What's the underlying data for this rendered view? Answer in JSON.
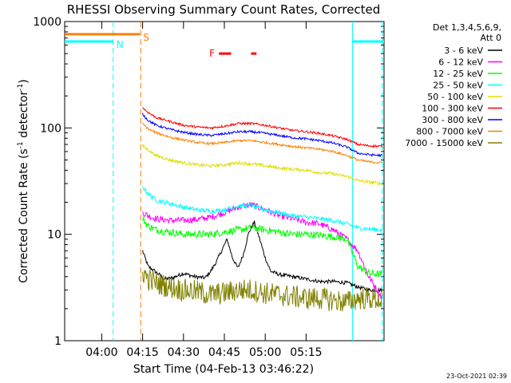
{
  "chart_data": {
    "type": "line",
    "title": "RHESSI Observing Summary Count Rates, Corrected",
    "xlabel": "Start Time (04-Feb-13 03:46:22)",
    "ylabel_main": "Corrected Count Rate (s",
    "ylabel_sup1": "-1",
    "ylabel_mid": " detector",
    "ylabel_sup2": "-1",
    "ylabel_end": ")",
    "y_scale": "log",
    "ylim": [
      1,
      1000
    ],
    "xlim": [
      226.4,
      343.6
    ],
    "x_ticks": [
      {
        "value": 240,
        "label": "04:00"
      },
      {
        "value": 255,
        "label": "04:15"
      },
      {
        "value": 270,
        "label": "04:30"
      },
      {
        "value": 285,
        "label": "04:45"
      },
      {
        "value": 300,
        "label": "05:00"
      },
      {
        "value": 315,
        "label": "05:15"
      }
    ],
    "y_ticks": [
      {
        "value": 1,
        "label": "1"
      },
      {
        "value": 10,
        "label": "10"
      },
      {
        "value": 100,
        "label": "100"
      },
      {
        "value": 1000,
        "label": "1000"
      }
    ],
    "legend": {
      "header1": "Det 1,3,4,5,6,9,",
      "header2": "Att 0",
      "placement": "right"
    },
    "timestamp": "23-Oct-2021 02:39",
    "flags": [
      {
        "label": "N",
        "color": "#00ffff",
        "x_start": 226.4,
        "x_end": 244.2,
        "level": 650
      },
      {
        "label": "S",
        "color": "#ff7f00",
        "x_start": 226.4,
        "x_end": 254.0,
        "level": 760
      }
    ],
    "flag_right": {
      "color": "#00ffff",
      "x_start": 332.0,
      "x_end": 343.6,
      "level": 650
    },
    "flare": {
      "label": "F",
      "color": "#ff0000",
      "segments": [
        [
          283.0,
          287.5
        ],
        [
          294.8,
          296.8
        ]
      ],
      "level": 500
    },
    "vlines": [
      {
        "x": 244.2,
        "color": "#00ffff",
        "style": "dashed"
      },
      {
        "x": 254.3,
        "color": "#ff7f00",
        "style": "dashed"
      },
      {
        "x": 332.0,
        "color": "#00ffff",
        "style": "solid"
      },
      {
        "x": 343.0,
        "color": "#00ffff",
        "style": "dashed"
      }
    ],
    "series": [
      {
        "name": "3 - 6 keV",
        "color": "#000000",
        "x": [
          255,
          257,
          259,
          261,
          263,
          266,
          270,
          274,
          278,
          280,
          282,
          284,
          286,
          288,
          290,
          292,
          294,
          296,
          298,
          300,
          302,
          305,
          310,
          315,
          320,
          325,
          330,
          334,
          338,
          343
        ],
        "y": [
          7,
          5,
          4.6,
          4.2,
          3.8,
          3.9,
          4.3,
          4.0,
          3.9,
          4.5,
          5.5,
          7.0,
          9.0,
          6.0,
          4.8,
          6.5,
          10.5,
          13.0,
          9.0,
          6.0,
          4.5,
          4.2,
          4.0,
          3.8,
          3.6,
          3.6,
          3.5,
          3.2,
          3.0,
          3.0
        ]
      },
      {
        "name": "6 - 12 keV",
        "color": "#ff00ff",
        "x": [
          255,
          257,
          260,
          265,
          270,
          275,
          280,
          285,
          290,
          295,
          300,
          305,
          310,
          315,
          320,
          325,
          330,
          334,
          338,
          343
        ],
        "y": [
          16,
          15,
          14,
          13.5,
          13.5,
          13.8,
          14.5,
          16,
          18,
          19,
          17,
          15,
          14,
          13,
          12.5,
          11,
          9,
          7,
          4,
          2.5
        ]
      },
      {
        "name": "12 - 25 keV",
        "color": "#00ff00",
        "x": [
          255,
          257,
          260,
          265,
          270,
          275,
          280,
          285,
          290,
          295,
          300,
          305,
          310,
          315,
          320,
          325,
          330,
          334,
          338,
          343
        ],
        "y": [
          14,
          12,
          11,
          10.5,
          10,
          10,
          10,
          10.5,
          11,
          11.5,
          11,
          10.5,
          10,
          10,
          9.8,
          9.5,
          9.0,
          5.0,
          4.3,
          4.2
        ]
      },
      {
        "name": "25 - 50 keV",
        "color": "#00ffff",
        "x": [
          255,
          257,
          260,
          265,
          270,
          275,
          280,
          285,
          290,
          295,
          300,
          305,
          310,
          315,
          320,
          325,
          330,
          334,
          338,
          343
        ],
        "y": [
          28,
          24,
          21,
          19.5,
          18,
          17,
          16.5,
          17,
          18.5,
          18.5,
          17,
          16,
          15,
          14.5,
          14,
          13.5,
          12.5,
          11.5,
          11.2,
          11
        ]
      },
      {
        "name": "50 - 100 keV",
        "color": "#dddd00",
        "x": [
          255,
          257,
          260,
          265,
          270,
          275,
          280,
          285,
          290,
          295,
          300,
          305,
          310,
          315,
          320,
          325,
          330,
          334,
          338,
          343
        ],
        "y": [
          68,
          62,
          55,
          50,
          47,
          45,
          44,
          45,
          47,
          46,
          44,
          42,
          41,
          40,
          38,
          37,
          35,
          32,
          31,
          30
        ]
      },
      {
        "name": "100 - 300 keV",
        "color": "#ff0000",
        "x": [
          255,
          257,
          260,
          265,
          270,
          275,
          280,
          285,
          290,
          295,
          300,
          305,
          310,
          315,
          320,
          325,
          330,
          334,
          338,
          343
        ],
        "y": [
          155,
          140,
          125,
          115,
          106,
          102,
          100,
          104,
          110,
          110,
          106,
          100,
          95,
          92,
          89,
          84,
          78,
          70,
          68,
          67
        ]
      },
      {
        "name": "300 - 800 keV",
        "color": "#0000ff",
        "x": [
          255,
          257,
          260,
          265,
          270,
          275,
          280,
          285,
          290,
          295,
          300,
          305,
          310,
          315,
          320,
          325,
          330,
          334,
          338,
          343
        ],
        "y": [
          135,
          118,
          106,
          97,
          91,
          87,
          85,
          88,
          92,
          92,
          89,
          85,
          81,
          79,
          76,
          72,
          66,
          58,
          56,
          55
        ]
      },
      {
        "name": "800 - 7000 keV",
        "color": "#ff7f00",
        "x": [
          255,
          257,
          260,
          265,
          270,
          275,
          280,
          285,
          290,
          295,
          300,
          305,
          310,
          315,
          320,
          325,
          330,
          334,
          338,
          343
        ],
        "y": [
          110,
          98,
          90,
          82,
          77,
          73,
          71,
          73,
          76,
          76,
          73,
          70,
          67,
          65,
          63,
          60,
          55,
          50,
          48,
          47
        ]
      },
      {
        "name": "7000 - 15000 keV",
        "color": "#808000",
        "x": [
          255,
          257,
          260,
          265,
          270,
          275,
          280,
          285,
          290,
          295,
          300,
          305,
          310,
          315,
          320,
          325,
          330,
          334,
          338,
          343
        ],
        "y": [
          4.5,
          3.8,
          3.5,
          3.2,
          3.0,
          2.9,
          2.7,
          2.8,
          3.0,
          3.0,
          2.8,
          2.7,
          2.6,
          2.5,
          2.5,
          2.4,
          2.3,
          2.5,
          2.5,
          2.4
        ]
      }
    ]
  }
}
